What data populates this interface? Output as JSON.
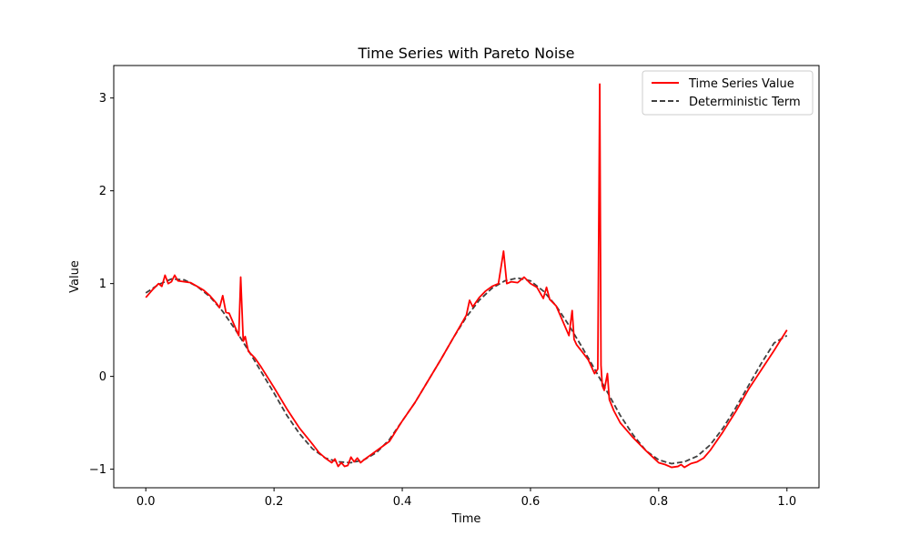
{
  "chart_data": {
    "type": "line",
    "title": "Time Series with Pareto Noise",
    "xlabel": "Time",
    "ylabel": "Value",
    "xlim": [
      -0.05,
      1.05
    ],
    "ylim": [
      -1.2,
      3.35
    ],
    "xticks": [
      0.0,
      0.2,
      0.4,
      0.6,
      0.8,
      1.0
    ],
    "xtick_labels": [
      "0.0",
      "0.2",
      "0.4",
      "0.6",
      "0.8",
      "1.0"
    ],
    "yticks": [
      -1,
      0,
      1,
      2,
      3
    ],
    "ytick_labels": [
      "−1",
      "0",
      "1",
      "2",
      "3"
    ],
    "grid": false,
    "legend": {
      "position": "top-right"
    },
    "series": [
      {
        "name": "Time Series Value",
        "color": "#ff0000",
        "style": "solid",
        "x": [
          0.0,
          0.01,
          0.02,
          0.025,
          0.03,
          0.035,
          0.04,
          0.045,
          0.05,
          0.06,
          0.07,
          0.08,
          0.09,
          0.1,
          0.11,
          0.115,
          0.12,
          0.125,
          0.13,
          0.14,
          0.145,
          0.148,
          0.152,
          0.155,
          0.158,
          0.16,
          0.17,
          0.18,
          0.2,
          0.22,
          0.24,
          0.26,
          0.27,
          0.28,
          0.29,
          0.295,
          0.3,
          0.305,
          0.31,
          0.315,
          0.32,
          0.325,
          0.33,
          0.335,
          0.34,
          0.35,
          0.36,
          0.38,
          0.4,
          0.42,
          0.44,
          0.46,
          0.48,
          0.5,
          0.505,
          0.51,
          0.52,
          0.53,
          0.54,
          0.55,
          0.558,
          0.563,
          0.57,
          0.58,
          0.59,
          0.6,
          0.61,
          0.62,
          0.625,
          0.63,
          0.64,
          0.65,
          0.66,
          0.665,
          0.668,
          0.672,
          0.68,
          0.69,
          0.7,
          0.705,
          0.708,
          0.71,
          0.712,
          0.715,
          0.72,
          0.723,
          0.73,
          0.74,
          0.76,
          0.78,
          0.8,
          0.81,
          0.82,
          0.83,
          0.835,
          0.84,
          0.85,
          0.86,
          0.87,
          0.88,
          0.9,
          0.92,
          0.94,
          0.96,
          0.98,
          1.0
        ],
        "y": [
          0.85,
          0.93,
          1.0,
          0.97,
          1.09,
          1.0,
          1.02,
          1.09,
          1.03,
          1.02,
          1.01,
          0.97,
          0.93,
          0.87,
          0.79,
          0.74,
          0.87,
          0.69,
          0.68,
          0.52,
          0.44,
          1.07,
          0.38,
          0.43,
          0.33,
          0.27,
          0.2,
          0.1,
          -0.12,
          -0.35,
          -0.56,
          -0.73,
          -0.82,
          -0.88,
          -0.93,
          -0.89,
          -0.97,
          -0.93,
          -0.97,
          -0.96,
          -0.87,
          -0.92,
          -0.88,
          -0.93,
          -0.9,
          -0.85,
          -0.8,
          -0.7,
          -0.48,
          -0.28,
          -0.05,
          0.18,
          0.42,
          0.66,
          0.82,
          0.75,
          0.85,
          0.92,
          0.97,
          1.0,
          1.35,
          1.0,
          1.02,
          1.01,
          1.07,
          1.0,
          0.96,
          0.84,
          0.96,
          0.83,
          0.76,
          0.6,
          0.44,
          0.71,
          0.4,
          0.34,
          0.27,
          0.18,
          0.03,
          0.08,
          3.15,
          0.12,
          -0.1,
          -0.15,
          0.03,
          -0.25,
          -0.37,
          -0.5,
          -0.66,
          -0.8,
          -0.93,
          -0.95,
          -0.98,
          -0.97,
          -0.95,
          -0.98,
          -0.94,
          -0.92,
          -0.88,
          -0.8,
          -0.6,
          -0.38,
          -0.14,
          0.07,
          0.28,
          0.5
        ]
      },
      {
        "name": "Deterministic Term",
        "color": "#404040",
        "style": "dashed",
        "x": [
          0.0,
          0.02,
          0.04,
          0.06,
          0.08,
          0.1,
          0.12,
          0.14,
          0.16,
          0.18,
          0.2,
          0.22,
          0.24,
          0.26,
          0.28,
          0.3,
          0.32,
          0.34,
          0.36,
          0.38,
          0.4,
          0.42,
          0.44,
          0.46,
          0.48,
          0.5,
          0.52,
          0.54,
          0.56,
          0.58,
          0.6,
          0.62,
          0.64,
          0.66,
          0.68,
          0.7,
          0.72,
          0.74,
          0.76,
          0.78,
          0.8,
          0.82,
          0.84,
          0.86,
          0.88,
          0.9,
          0.92,
          0.94,
          0.96,
          0.98,
          1.0
        ],
        "y": [
          0.9,
          0.99,
          1.05,
          1.04,
          0.97,
          0.86,
          0.7,
          0.5,
          0.28,
          0.05,
          -0.18,
          -0.42,
          -0.62,
          -0.78,
          -0.88,
          -0.92,
          -0.93,
          -0.9,
          -0.82,
          -0.68,
          -0.48,
          -0.28,
          -0.05,
          0.18,
          0.42,
          0.64,
          0.82,
          0.95,
          1.03,
          1.06,
          1.03,
          0.92,
          0.76,
          0.55,
          0.32,
          0.08,
          -0.17,
          -0.42,
          -0.63,
          -0.8,
          -0.9,
          -0.94,
          -0.92,
          -0.86,
          -0.74,
          -0.56,
          -0.34,
          -0.1,
          0.14,
          0.36,
          0.44
        ]
      }
    ]
  }
}
